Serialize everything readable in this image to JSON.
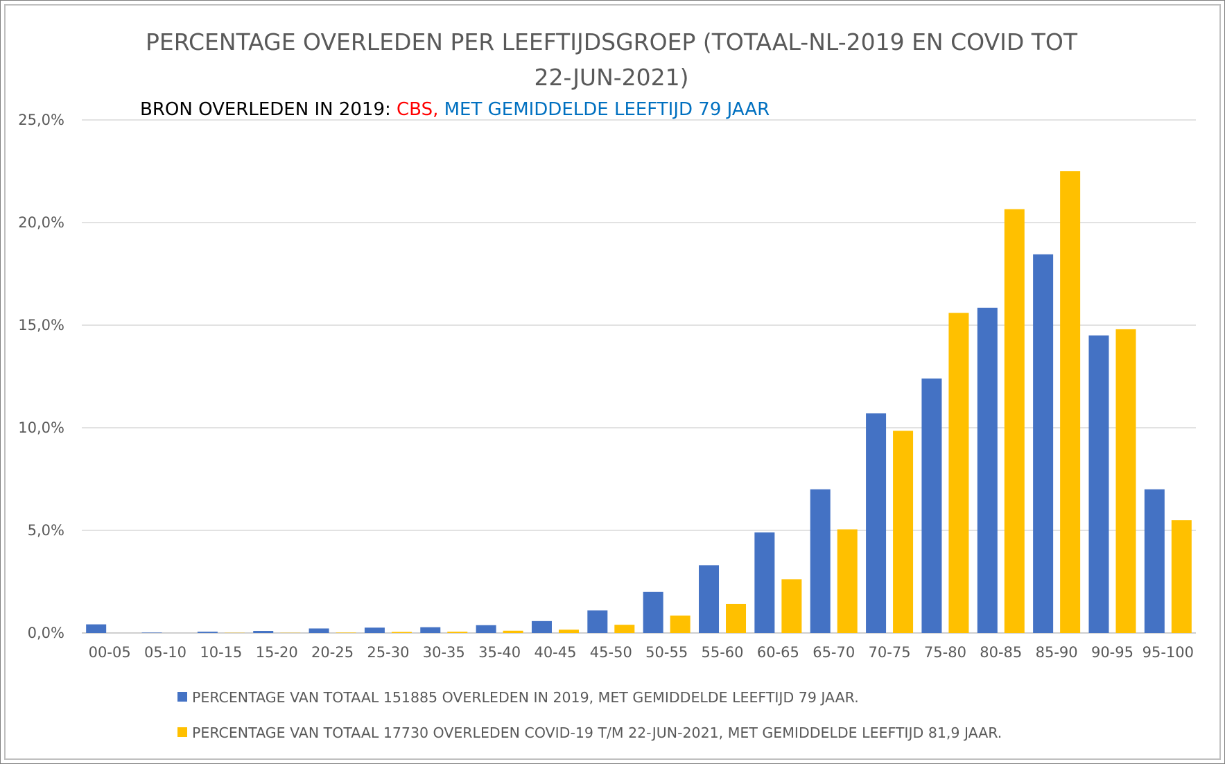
{
  "chart_data": {
    "type": "bar",
    "title_line1": "PERCENTAGE OVERLEDEN PER LEEFTIJDSGROEP (TOTAAL-NL-2019 EN COVID TOT",
    "title_line2": "22-JUN-2021)",
    "subtitle": {
      "part1": "BRON OVERLEDEN IN 2019: ",
      "part2": "CBS,",
      "part3": " MET GEMIDDELDE LEEFTIJD 79 JAAR",
      "color1": "#000000",
      "color2": "#ff0000",
      "color3": "#0070c0"
    },
    "categories": [
      "00-05",
      "05-10",
      "10-15",
      "15-20",
      "20-25",
      "25-30",
      "30-35",
      "35-40",
      "40-45",
      "45-50",
      "50-55",
      "55-60",
      "60-65",
      "65-70",
      "70-75",
      "75-80",
      "80-85",
      "85-90",
      "90-95",
      "95-100"
    ],
    "y_ticks": [
      "0,0%",
      "5,0%",
      "10,0%",
      "15,0%",
      "20,0%",
      "25,0%"
    ],
    "ylim": [
      0,
      25
    ],
    "grid": true,
    "legend_position": "bottom",
    "series": [
      {
        "name": "PERCENTAGE VAN TOTAAL 151885 OVERLEDEN IN 2019, MET GEMIDDELDE LEEFTIJD 79 JAAR.",
        "color": "#4472c4",
        "values": [
          0.42,
          0.02,
          0.06,
          0.1,
          0.22,
          0.26,
          0.28,
          0.38,
          0.58,
          1.1,
          2.0,
          3.3,
          4.9,
          7.0,
          10.7,
          12.4,
          15.85,
          18.45,
          14.5,
          7.0
        ]
      },
      {
        "name": "PERCENTAGE VAN TOTAAL 17730 OVERLEDEN COVID-19 T/M 22-JUN-2021, MET GEMIDDELDE LEEFTIJD 81,9 JAAR.",
        "color": "#ffc000",
        "values": [
          0.0,
          0.0,
          0.01,
          0.01,
          0.02,
          0.05,
          0.06,
          0.11,
          0.16,
          0.4,
          0.85,
          1.42,
          2.62,
          5.05,
          9.85,
          15.6,
          20.65,
          22.5,
          14.8,
          5.5
        ]
      }
    ]
  }
}
